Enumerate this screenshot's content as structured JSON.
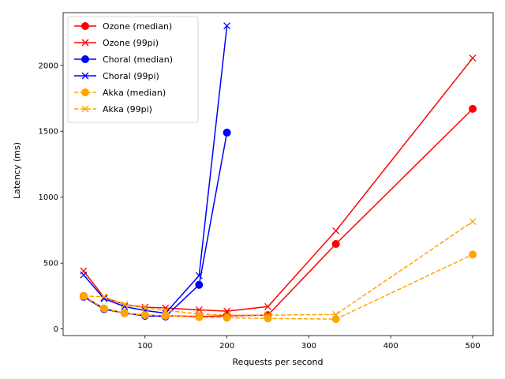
{
  "chart_data": {
    "type": "line",
    "title": "",
    "xlabel": "Requests per second",
    "ylabel": "Latency (ms)",
    "xlim": [
      0,
      525
    ],
    "ylim": [
      -50,
      2400
    ],
    "xticks": [
      100,
      200,
      300,
      400,
      500
    ],
    "yticks": [
      0,
      500,
      1000,
      1500,
      2000
    ],
    "grid": false,
    "legend_position": "top-left",
    "series": [
      {
        "name": "Ozone (median)",
        "color": "#ff0000",
        "marker": "circle",
        "dashed": false,
        "x": [
          25,
          50,
          75,
          100,
          125,
          166,
          200,
          250,
          333,
          500
        ],
        "y": [
          250,
          155,
          120,
          105,
          100,
          95,
          100,
          105,
          645,
          1670
        ]
      },
      {
        "name": "Ozone (99pi)",
        "color": "#ff0000",
        "marker": "x",
        "dashed": false,
        "x": [
          25,
          50,
          75,
          100,
          125,
          166,
          200,
          250,
          333,
          500
        ],
        "y": [
          440,
          240,
          185,
          165,
          160,
          145,
          135,
          170,
          745,
          2055
        ]
      },
      {
        "name": "Choral (median)",
        "color": "#0000ff",
        "marker": "circle",
        "dashed": false,
        "x": [
          25,
          50,
          75,
          100,
          125,
          166,
          200
        ],
        "y": [
          245,
          150,
          120,
          100,
          95,
          335,
          1490
        ]
      },
      {
        "name": "Choral (99pi)",
        "color": "#0000ff",
        "marker": "x",
        "dashed": false,
        "x": [
          25,
          50,
          75,
          100,
          125,
          166,
          200
        ],
        "y": [
          410,
          230,
          170,
          140,
          120,
          405,
          2300
        ]
      },
      {
        "name": "Akka (median)",
        "color": "#ffa500",
        "marker": "circle",
        "dashed": true,
        "x": [
          25,
          50,
          75,
          100,
          125,
          166,
          200,
          250,
          333,
          500
        ],
        "y": [
          250,
          155,
          120,
          105,
          100,
          90,
          85,
          80,
          75,
          565
        ]
      },
      {
        "name": "Akka (99pi)",
        "color": "#ffa500",
        "marker": "x",
        "dashed": true,
        "x": [
          25,
          50,
          75,
          100,
          125,
          166,
          200,
          250,
          333,
          500
        ],
        "y": [
          250,
          245,
          185,
          160,
          140,
          115,
          105,
          105,
          110,
          815
        ]
      }
    ]
  }
}
